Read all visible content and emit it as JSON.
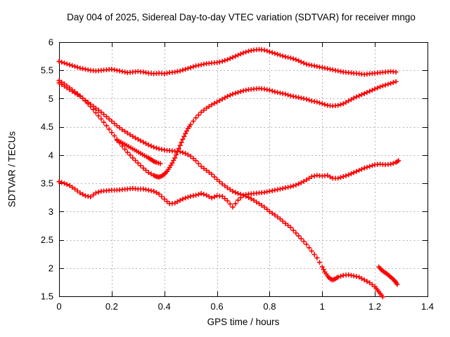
{
  "chart_data": {
    "type": "scatter",
    "title": "Day 004 of 2025, Sidereal Day-to-day VTEC variation (SDTVAR) for receiver mngo",
    "xlabel": "GPS time / hours",
    "ylabel": "SDTVAR / TECUs",
    "xlim": [
      0,
      1.4
    ],
    "ylim": [
      1.5,
      6
    ],
    "x_ticks": [
      0,
      0.2,
      0.4,
      0.6,
      0.8,
      1,
      1.2,
      1.4
    ],
    "y_ticks": [
      1.5,
      2,
      2.5,
      3,
      3.5,
      4,
      4.5,
      5,
      5.5,
      6
    ],
    "grid": "dotted",
    "marker": "plus-cross",
    "marker_color": "#ff0000",
    "grid_color": "#b3b3b3",
    "axis_color": "#000000",
    "legend": "none",
    "series": [
      {
        "name": "upper-wavy-track",
        "points": [
          [
            0,
            5.66
          ],
          [
            0.02,
            5.63
          ],
          [
            0.04,
            5.6
          ],
          [
            0.06,
            5.57
          ],
          [
            0.08,
            5.54
          ],
          [
            0.1,
            5.52
          ],
          [
            0.12,
            5.5
          ],
          [
            0.14,
            5.49
          ],
          [
            0.16,
            5.5
          ],
          [
            0.18,
            5.51
          ],
          [
            0.2,
            5.52
          ],
          [
            0.22,
            5.5
          ],
          [
            0.24,
            5.48
          ],
          [
            0.26,
            5.46
          ],
          [
            0.28,
            5.47
          ],
          [
            0.3,
            5.48
          ],
          [
            0.32,
            5.47
          ],
          [
            0.34,
            5.45
          ],
          [
            0.36,
            5.44
          ],
          [
            0.38,
            5.45
          ],
          [
            0.4,
            5.44
          ],
          [
            0.42,
            5.46
          ],
          [
            0.44,
            5.47
          ],
          [
            0.46,
            5.49
          ],
          [
            0.48,
            5.52
          ],
          [
            0.5,
            5.55
          ],
          [
            0.52,
            5.58
          ],
          [
            0.54,
            5.6
          ],
          [
            0.56,
            5.62
          ],
          [
            0.58,
            5.63
          ],
          [
            0.6,
            5.64
          ],
          [
            0.62,
            5.66
          ],
          [
            0.64,
            5.69
          ],
          [
            0.66,
            5.73
          ],
          [
            0.68,
            5.77
          ],
          [
            0.7,
            5.81
          ],
          [
            0.72,
            5.84
          ],
          [
            0.74,
            5.86
          ],
          [
            0.76,
            5.87
          ],
          [
            0.78,
            5.86
          ],
          [
            0.8,
            5.83
          ],
          [
            0.82,
            5.8
          ],
          [
            0.84,
            5.77
          ],
          [
            0.86,
            5.74
          ],
          [
            0.88,
            5.72
          ],
          [
            0.9,
            5.69
          ],
          [
            0.92,
            5.65
          ],
          [
            0.94,
            5.61
          ],
          [
            0.96,
            5.59
          ],
          [
            0.98,
            5.57
          ],
          [
            1.0,
            5.55
          ],
          [
            1.02,
            5.53
          ],
          [
            1.04,
            5.51
          ],
          [
            1.06,
            5.49
          ],
          [
            1.08,
            5.47
          ],
          [
            1.1,
            5.46
          ],
          [
            1.12,
            5.45
          ],
          [
            1.14,
            5.44
          ],
          [
            1.16,
            5.43
          ],
          [
            1.18,
            5.44
          ],
          [
            1.2,
            5.45
          ],
          [
            1.22,
            5.46
          ],
          [
            1.24,
            5.47
          ],
          [
            1.26,
            5.48
          ],
          [
            1.28,
            5.47
          ]
        ]
      },
      {
        "name": "v-shaped-track",
        "points": [
          [
            0,
            5.32
          ],
          [
            0.02,
            5.26
          ],
          [
            0.04,
            5.19
          ],
          [
            0.06,
            5.12
          ],
          [
            0.08,
            5.05
          ],
          [
            0.1,
            4.96
          ],
          [
            0.12,
            4.86
          ],
          [
            0.14,
            4.75
          ],
          [
            0.16,
            4.64
          ],
          [
            0.18,
            4.52
          ],
          [
            0.2,
            4.4
          ],
          [
            0.22,
            4.28
          ],
          [
            0.24,
            4.16
          ],
          [
            0.26,
            4.05
          ],
          [
            0.28,
            3.95
          ],
          [
            0.3,
            3.86
          ],
          [
            0.32,
            3.77
          ],
          [
            0.34,
            3.69
          ],
          [
            0.36,
            3.64
          ],
          [
            0.37,
            3.62
          ],
          [
            0.38,
            3.61
          ],
          [
            0.39,
            3.63
          ],
          [
            0.4,
            3.66
          ],
          [
            0.41,
            3.71
          ],
          [
            0.42,
            3.78
          ],
          [
            0.43,
            3.86
          ],
          [
            0.44,
            3.95
          ],
          [
            0.45,
            4.06
          ],
          [
            0.46,
            4.17
          ],
          [
            0.47,
            4.28
          ],
          [
            0.48,
            4.38
          ],
          [
            0.49,
            4.47
          ],
          [
            0.5,
            4.54
          ],
          [
            0.52,
            4.66
          ],
          [
            0.54,
            4.76
          ],
          [
            0.56,
            4.83
          ],
          [
            0.58,
            4.89
          ],
          [
            0.6,
            4.94
          ],
          [
            0.62,
            4.99
          ],
          [
            0.64,
            5.04
          ],
          [
            0.66,
            5.08
          ],
          [
            0.68,
            5.11
          ],
          [
            0.7,
            5.14
          ],
          [
            0.72,
            5.16
          ],
          [
            0.74,
            5.17
          ],
          [
            0.76,
            5.18
          ],
          [
            0.78,
            5.17
          ],
          [
            0.8,
            5.15
          ],
          [
            0.82,
            5.12
          ],
          [
            0.84,
            5.1
          ],
          [
            0.86,
            5.08
          ],
          [
            0.88,
            5.05
          ],
          [
            0.9,
            5.03
          ],
          [
            0.92,
            5.01
          ],
          [
            0.94,
            4.99
          ],
          [
            0.96,
            4.96
          ],
          [
            0.98,
            4.94
          ],
          [
            1.0,
            4.91
          ],
          [
            1.02,
            4.88
          ],
          [
            1.04,
            4.87
          ],
          [
            1.06,
            4.88
          ],
          [
            1.08,
            4.91
          ],
          [
            1.1,
            4.96
          ],
          [
            1.12,
            5.01
          ],
          [
            1.14,
            5.05
          ],
          [
            1.16,
            5.09
          ],
          [
            1.18,
            5.13
          ],
          [
            1.2,
            5.17
          ],
          [
            1.22,
            5.21
          ],
          [
            1.24,
            5.24
          ],
          [
            1.26,
            5.27
          ],
          [
            1.28,
            5.3
          ]
        ]
      },
      {
        "name": "long-declining-track",
        "points": [
          [
            0,
            5.28
          ],
          [
            0.02,
            5.22
          ],
          [
            0.04,
            5.16
          ],
          [
            0.06,
            5.1
          ],
          [
            0.08,
            5.04
          ],
          [
            0.1,
            4.97
          ],
          [
            0.12,
            4.9
          ],
          [
            0.14,
            4.83
          ],
          [
            0.16,
            4.76
          ],
          [
            0.18,
            4.68
          ],
          [
            0.2,
            4.6
          ],
          [
            0.22,
            4.52
          ],
          [
            0.24,
            4.45
          ],
          [
            0.26,
            4.39
          ],
          [
            0.28,
            4.33
          ],
          [
            0.3,
            4.28
          ],
          [
            0.32,
            4.23
          ],
          [
            0.34,
            4.18
          ],
          [
            0.36,
            4.14
          ],
          [
            0.38,
            4.11
          ],
          [
            0.4,
            4.09
          ],
          [
            0.42,
            4.08
          ],
          [
            0.44,
            4.07
          ],
          [
            0.46,
            4.06
          ],
          [
            0.48,
            4.03
          ],
          [
            0.5,
            3.98
          ],
          [
            0.52,
            3.9
          ],
          [
            0.54,
            3.8
          ],
          [
            0.56,
            3.73
          ],
          [
            0.58,
            3.66
          ],
          [
            0.6,
            3.57
          ],
          [
            0.62,
            3.49
          ],
          [
            0.64,
            3.42
          ],
          [
            0.66,
            3.36
          ],
          [
            0.68,
            3.32
          ],
          [
            0.7,
            3.29
          ],
          [
            0.72,
            3.25
          ],
          [
            0.74,
            3.2
          ],
          [
            0.76,
            3.14
          ],
          [
            0.78,
            3.08
          ],
          [
            0.8,
            3.0
          ],
          [
            0.82,
            2.94
          ],
          [
            0.84,
            2.87
          ],
          [
            0.86,
            2.79
          ],
          [
            0.88,
            2.72
          ],
          [
            0.9,
            2.62
          ],
          [
            0.92,
            2.52
          ],
          [
            0.94,
            2.42
          ],
          [
            0.96,
            2.3
          ],
          [
            0.98,
            2.18
          ],
          [
            1.0,
            2.02
          ],
          [
            1.01,
            1.93
          ],
          [
            1.02,
            1.86
          ],
          [
            1.03,
            1.81
          ],
          [
            1.04,
            1.79
          ],
          [
            1.05,
            1.81
          ],
          [
            1.06,
            1.84
          ],
          [
            1.08,
            1.87
          ],
          [
            1.1,
            1.88
          ],
          [
            1.12,
            1.86
          ],
          [
            1.14,
            1.84
          ],
          [
            1.16,
            1.79
          ],
          [
            1.18,
            1.74
          ],
          [
            1.2,
            1.67
          ],
          [
            1.21,
            1.61
          ],
          [
            1.22,
            1.55
          ],
          [
            1.23,
            1.49
          ]
        ]
      },
      {
        "name": "lower-wavy-track",
        "points": [
          [
            0,
            3.53
          ],
          [
            0.02,
            3.5
          ],
          [
            0.04,
            3.46
          ],
          [
            0.06,
            3.4
          ],
          [
            0.08,
            3.33
          ],
          [
            0.1,
            3.28
          ],
          [
            0.12,
            3.26
          ],
          [
            0.14,
            3.33
          ],
          [
            0.16,
            3.36
          ],
          [
            0.18,
            3.37
          ],
          [
            0.2,
            3.38
          ],
          [
            0.22,
            3.38
          ],
          [
            0.24,
            3.39
          ],
          [
            0.26,
            3.4
          ],
          [
            0.28,
            3.41
          ],
          [
            0.3,
            3.4
          ],
          [
            0.32,
            3.4
          ],
          [
            0.34,
            3.38
          ],
          [
            0.36,
            3.36
          ],
          [
            0.38,
            3.31
          ],
          [
            0.4,
            3.22
          ],
          [
            0.42,
            3.14
          ],
          [
            0.44,
            3.15
          ],
          [
            0.46,
            3.2
          ],
          [
            0.48,
            3.24
          ],
          [
            0.5,
            3.27
          ],
          [
            0.52,
            3.29
          ],
          [
            0.54,
            3.32
          ],
          [
            0.56,
            3.29
          ],
          [
            0.58,
            3.24
          ],
          [
            0.6,
            3.28
          ],
          [
            0.62,
            3.27
          ],
          [
            0.64,
            3.19
          ],
          [
            0.66,
            3.08
          ],
          [
            0.68,
            3.2
          ],
          [
            0.7,
            3.29
          ],
          [
            0.72,
            3.31
          ],
          [
            0.74,
            3.32
          ],
          [
            0.76,
            3.33
          ],
          [
            0.78,
            3.34
          ],
          [
            0.8,
            3.36
          ],
          [
            0.82,
            3.38
          ],
          [
            0.84,
            3.4
          ],
          [
            0.86,
            3.42
          ],
          [
            0.88,
            3.44
          ],
          [
            0.9,
            3.47
          ],
          [
            0.92,
            3.51
          ],
          [
            0.94,
            3.56
          ],
          [
            0.96,
            3.62
          ],
          [
            0.98,
            3.64
          ],
          [
            1.0,
            3.63
          ],
          [
            1.02,
            3.64
          ],
          [
            1.04,
            3.59
          ],
          [
            1.06,
            3.59
          ],
          [
            1.08,
            3.62
          ],
          [
            1.1,
            3.65
          ],
          [
            1.12,
            3.69
          ],
          [
            1.14,
            3.73
          ],
          [
            1.16,
            3.77
          ],
          [
            1.18,
            3.8
          ],
          [
            1.2,
            3.83
          ],
          [
            1.22,
            3.84
          ],
          [
            1.24,
            3.83
          ],
          [
            1.26,
            3.84
          ],
          [
            1.28,
            3.87
          ],
          [
            1.29,
            3.9
          ]
        ]
      },
      {
        "name": "short-declining-segment",
        "points": [
          [
            0.22,
            4.26
          ],
          [
            0.235,
            4.23
          ],
          [
            0.25,
            4.19
          ],
          [
            0.265,
            4.15
          ],
          [
            0.28,
            4.11
          ],
          [
            0.295,
            4.07
          ],
          [
            0.31,
            4.03
          ],
          [
            0.325,
            3.99
          ],
          [
            0.34,
            3.95
          ],
          [
            0.35,
            3.92
          ],
          [
            0.36,
            3.89
          ],
          [
            0.37,
            3.87
          ],
          [
            0.385,
            3.85
          ]
        ]
      },
      {
        "name": "detached-tail-segment",
        "points": [
          [
            1.215,
            2.02
          ],
          [
            1.225,
            1.97
          ],
          [
            1.235,
            1.93
          ],
          [
            1.245,
            1.9
          ],
          [
            1.255,
            1.86
          ],
          [
            1.265,
            1.82
          ],
          [
            1.272,
            1.79
          ],
          [
            1.278,
            1.76
          ],
          [
            1.285,
            1.71
          ]
        ]
      }
    ]
  }
}
